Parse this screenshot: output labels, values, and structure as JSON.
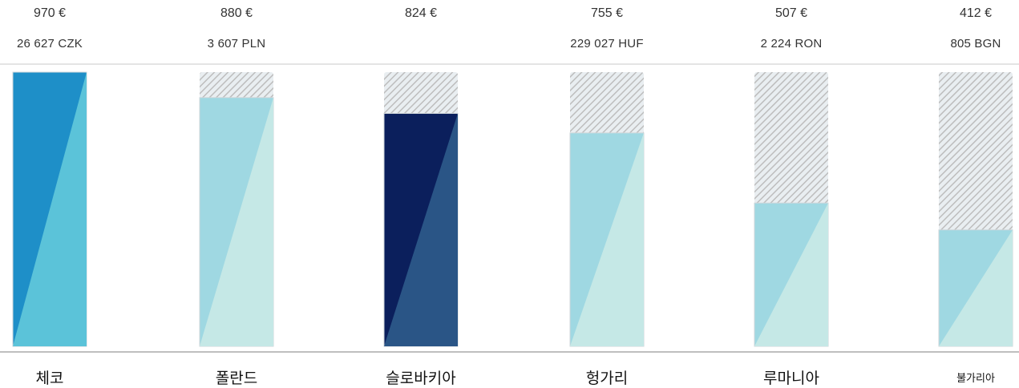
{
  "chart_data": {
    "type": "bar",
    "title": "",
    "xlabel": "",
    "ylabel": "",
    "ylim": [
      0,
      970
    ],
    "categories": [
      "체코",
      "폴란드",
      "슬로바키아",
      "헝가리",
      "루마니아",
      "불가리아"
    ],
    "values": [
      970,
      880,
      824,
      755,
      507,
      412
    ],
    "series": [
      {
        "values": [
          970,
          880,
          824,
          755,
          507,
          412
        ],
        "eur_labels": [
          "970 €",
          "880 €",
          "824 €",
          "755 €",
          "507 €",
          "412 €"
        ],
        "local_labels": [
          "26 627 CZK",
          "3 607 PLN",
          "",
          "229 027 HUF",
          "2 224 RON",
          "805 BGN"
        ]
      }
    ],
    "background_fill": [
      "none",
      "hatched",
      "hatched",
      "hatched",
      "hatched",
      "hatched"
    ],
    "grid": false,
    "legend": "none",
    "colors": {
      "highlight_top": "#1e8fc8",
      "highlight_bottom": "#5bc3d9",
      "dark_top": "#0b1f5c",
      "dark_bottom": "#2a5586",
      "light_top": "#9fd8e2",
      "light_bottom": "#c5e8e6",
      "hatch": "#c9c9c9",
      "axis": "#aaaaaa"
    }
  }
}
